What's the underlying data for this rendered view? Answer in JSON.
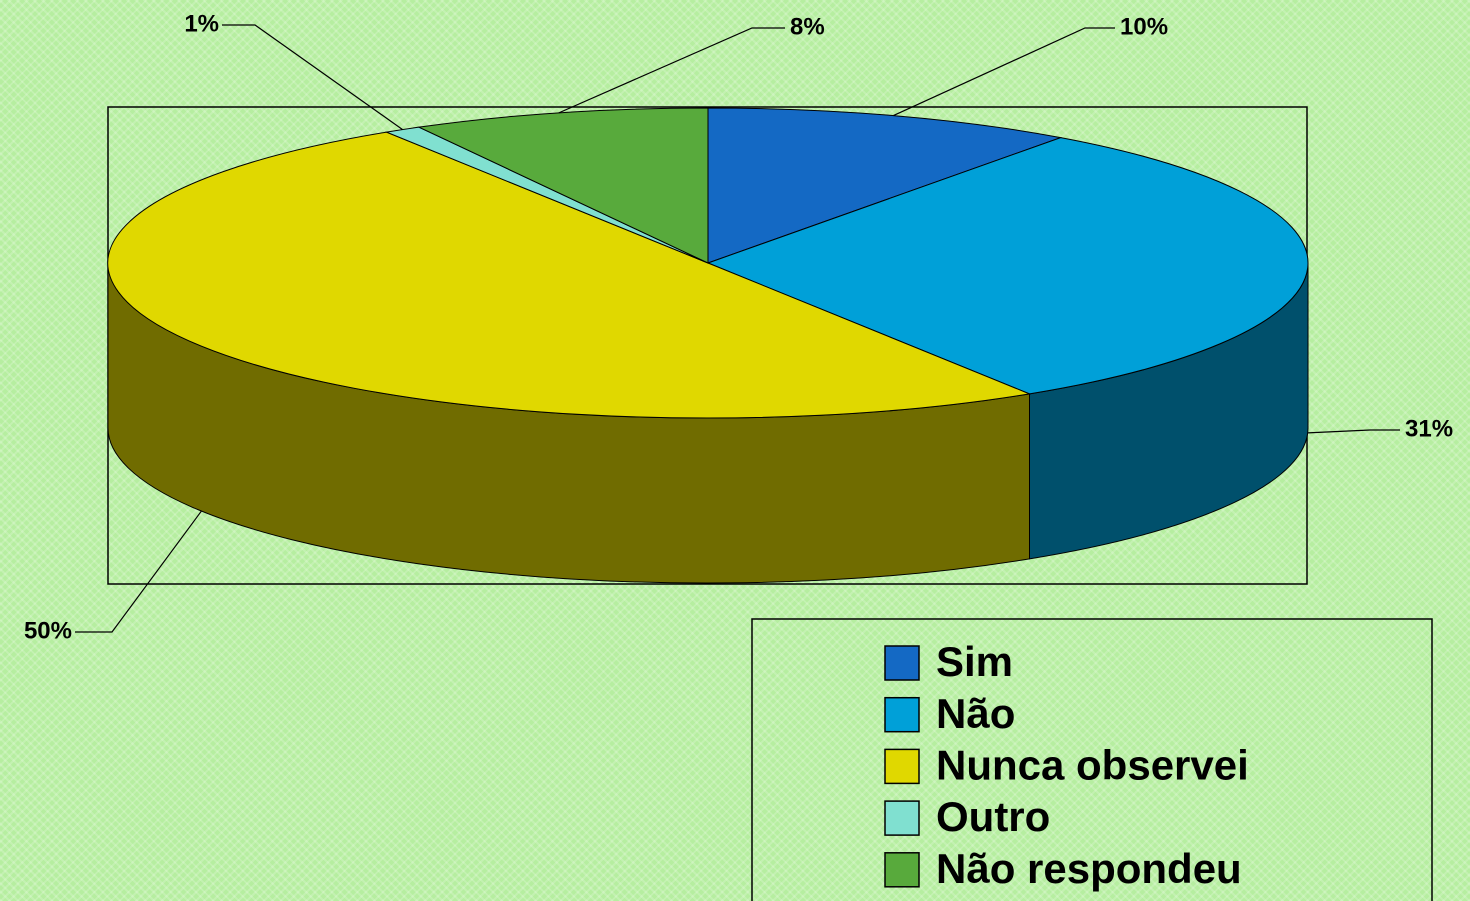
{
  "chart_data": {
    "type": "pie3d",
    "categories": [
      "Sim",
      "Não",
      "Nunca observei",
      "Outro",
      "Não respondeu"
    ],
    "values": [
      10,
      31,
      50,
      1,
      8
    ],
    "value_labels": [
      "10%",
      "31%",
      "50%",
      "1%",
      "8%"
    ],
    "colors": [
      "#1469c4",
      "#00a0d8",
      "#e0d800",
      "#80e0d0",
      "#58aa3c"
    ],
    "legend": "bottom-right"
  }
}
